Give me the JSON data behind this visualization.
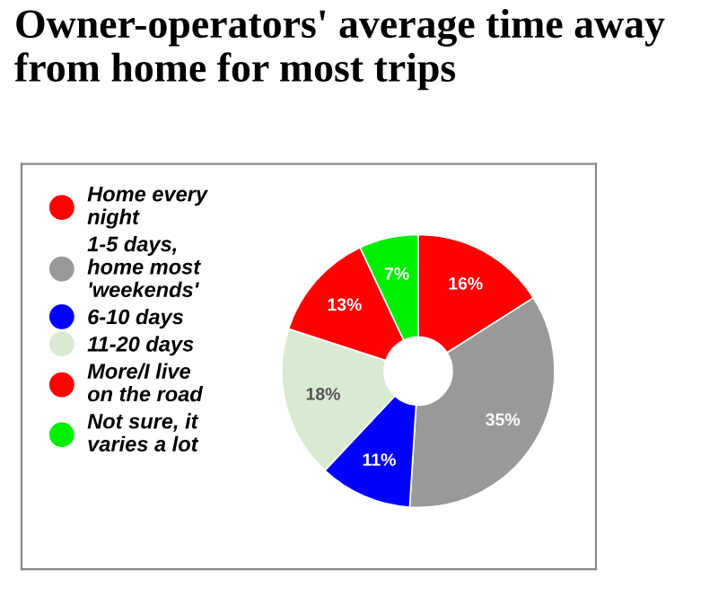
{
  "chart_data": {
    "type": "donut",
    "title": "Owner-operators' average time away from home for most trips",
    "categories": [
      "Home every night",
      "1-5 days, home most 'weekends'",
      "6-10 days",
      "11-20 days",
      "More/I live on the road",
      "Not sure, it varies a lot"
    ],
    "values": [
      16,
      35,
      11,
      18,
      13,
      7
    ],
    "colors": [
      "#ff0000",
      "#999999",
      "#0000ff",
      "#d9ead3",
      "#ff0000",
      "#00ee00"
    ],
    "value_labels": [
      "16%",
      "35%",
      "11%",
      "18%",
      "13%",
      "7%"
    ],
    "legend": "left"
  }
}
